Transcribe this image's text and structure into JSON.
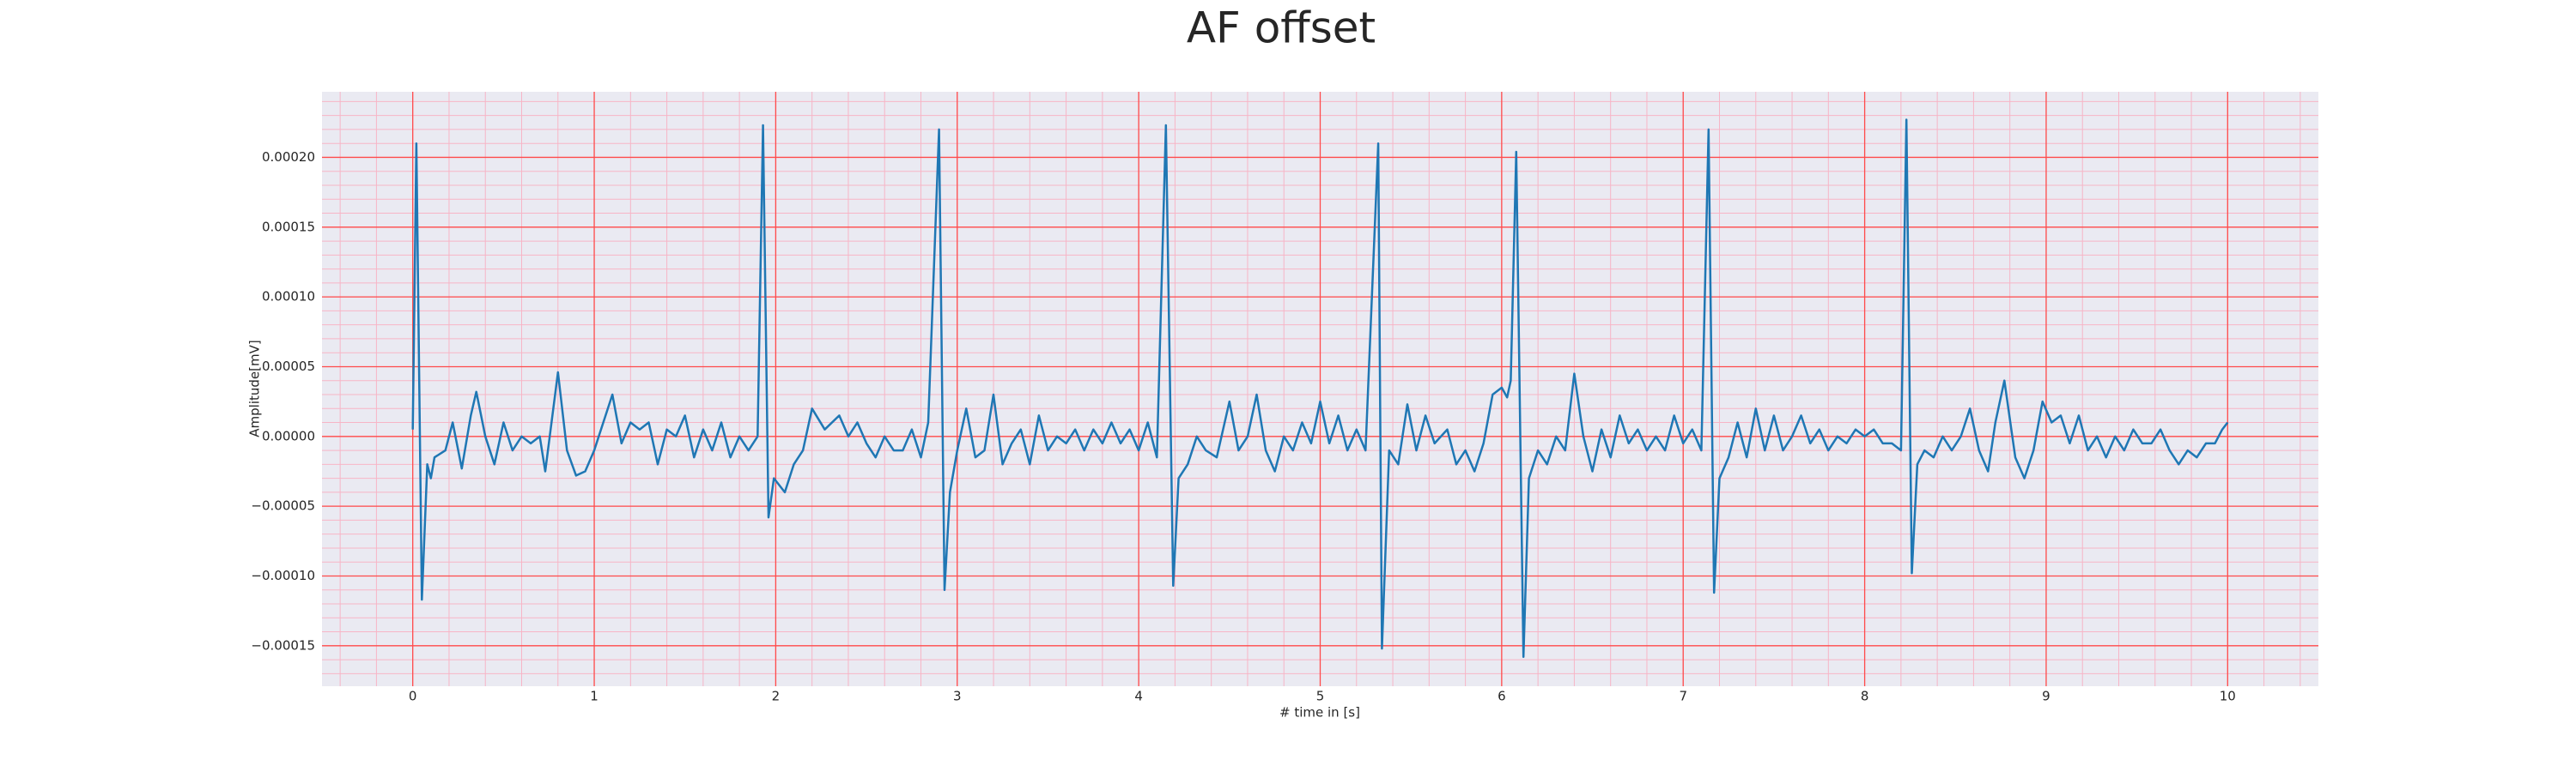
{
  "chart_data": {
    "type": "line",
    "title": "AF offset",
    "x_label": "# time in [s]",
    "y_label": "Amplitude[mV]",
    "xlim": [
      -0.5,
      10.5
    ],
    "ylim": [
      -0.000179,
      0.000247
    ],
    "xticks": [
      0,
      1,
      2,
      3,
      4,
      5,
      6,
      7,
      8,
      9,
      10
    ],
    "yticks": [
      {
        "value": -0.00015,
        "label": "−0.00015"
      },
      {
        "value": -0.0001,
        "label": "−0.00010"
      },
      {
        "value": -5e-05,
        "label": "−0.00005"
      },
      {
        "value": 0,
        "label": "0.00000"
      },
      {
        "value": 5e-05,
        "label": "0.00005"
      },
      {
        "value": 0.0001,
        "label": "0.00010"
      },
      {
        "value": 0.00015,
        "label": "0.00015"
      },
      {
        "value": 0.0002,
        "label": "0.00020"
      }
    ],
    "grid": true,
    "grid_color": "#ff4b4b",
    "minor_grid": {
      "x": 0.2,
      "y": 1e-05,
      "color": "#f7b5c6"
    },
    "background": "#eaeaf2",
    "series": [
      {
        "name": "AF offset",
        "color": "#1f77b4",
        "x": [
          0,
          0.02,
          0.05,
          0.08,
          0.1,
          0.12,
          0.18,
          0.22,
          0.27,
          0.32,
          0.35,
          0.4,
          0.45,
          0.5,
          0.55,
          0.6,
          0.65,
          0.7,
          0.73,
          0.8,
          0.85,
          0.9,
          0.95,
          1.0,
          1.05,
          1.1,
          1.15,
          1.2,
          1.25,
          1.3,
          1.35,
          1.4,
          1.45,
          1.5,
          1.55,
          1.6,
          1.65,
          1.7,
          1.75,
          1.8,
          1.85,
          1.9,
          1.93,
          1.96,
          1.99,
          2.05,
          2.1,
          2.15,
          2.2,
          2.27,
          2.35,
          2.4,
          2.45,
          2.5,
          2.55,
          2.6,
          2.65,
          2.7,
          2.75,
          2.8,
          2.84,
          2.9,
          2.93,
          2.96,
          3.0,
          3.05,
          3.1,
          3.15,
          3.2,
          3.25,
          3.3,
          3.35,
          3.4,
          3.45,
          3.5,
          3.55,
          3.6,
          3.65,
          3.7,
          3.75,
          3.8,
          3.85,
          3.9,
          3.95,
          4.0,
          4.05,
          4.1,
          4.15,
          4.19,
          4.22,
          4.27,
          4.32,
          4.37,
          4.43,
          4.5,
          4.55,
          4.6,
          4.65,
          4.7,
          4.75,
          4.8,
          4.85,
          4.9,
          4.95,
          5.0,
          5.05,
          5.1,
          5.15,
          5.2,
          5.25,
          5.32,
          5.34,
          5.38,
          5.43,
          5.48,
          5.53,
          5.58,
          5.63,
          5.7,
          5.75,
          5.8,
          5.85,
          5.9,
          5.95,
          6.0,
          6.03,
          6.05,
          6.08,
          6.12,
          6.15,
          6.2,
          6.25,
          6.3,
          6.35,
          6.4,
          6.45,
          6.5,
          6.55,
          6.6,
          6.65,
          6.7,
          6.75,
          6.8,
          6.85,
          6.9,
          6.95,
          7.0,
          7.05,
          7.1,
          7.14,
          7.17,
          7.2,
          7.25,
          7.3,
          7.35,
          7.4,
          7.45,
          7.5,
          7.55,
          7.6,
          7.65,
          7.7,
          7.75,
          7.8,
          7.85,
          7.9,
          7.95,
          8.0,
          8.05,
          8.1,
          8.15,
          8.2,
          8.23,
          8.26,
          8.29,
          8.33,
          8.38,
          8.43,
          8.48,
          8.53,
          8.58,
          8.63,
          8.68,
          8.72,
          8.77,
          8.83,
          8.88,
          8.93,
          8.98,
          9.03,
          9.08,
          9.13,
          9.18,
          9.23,
          9.28,
          9.33,
          9.38,
          9.43,
          9.48,
          9.53,
          9.58,
          9.63,
          9.68,
          9.73,
          9.78,
          9.83,
          9.88,
          9.93,
          9.97,
          10.0
        ],
        "values": [
          5e-06,
          0.00021,
          -0.000117,
          -2e-05,
          -3e-05,
          -1.5e-05,
          -1e-05,
          1e-05,
          -2.3e-05,
          1.5e-05,
          3.2e-05,
          0,
          -2e-05,
          1e-05,
          -1e-05,
          0,
          -5e-06,
          0,
          -2.5e-05,
          4.6e-05,
          -1e-05,
          -2.8e-05,
          -2.5e-05,
          -1e-05,
          1e-05,
          3e-05,
          -5e-06,
          1e-05,
          5e-06,
          1e-05,
          -2e-05,
          5e-06,
          0,
          1.5e-05,
          -1.5e-05,
          5e-06,
          -1e-05,
          1e-05,
          -1.5e-05,
          0,
          -1e-05,
          0,
          0.000223,
          -5.8e-05,
          -3e-05,
          -4e-05,
          -2e-05,
          -1e-05,
          2e-05,
          5e-06,
          1.5e-05,
          0,
          1e-05,
          -5e-06,
          -1.5e-05,
          0,
          -1e-05,
          -1e-05,
          5e-06,
          -1.5e-05,
          1e-05,
          0.00022,
          -0.00011,
          -4e-05,
          -1e-05,
          2e-05,
          -1.5e-05,
          -1e-05,
          3e-05,
          -2e-05,
          -5e-06,
          5e-06,
          -2e-05,
          1.5e-05,
          -1e-05,
          0,
          -5e-06,
          5e-06,
          -1e-05,
          5e-06,
          -5e-06,
          1e-05,
          -5e-06,
          5e-06,
          -1e-05,
          1e-05,
          -1.5e-05,
          0.000223,
          -0.000107,
          -3e-05,
          -2e-05,
          0,
          -1e-05,
          -1.5e-05,
          2.5e-05,
          -1e-05,
          0,
          3e-05,
          -1e-05,
          -2.5e-05,
          0,
          -1e-05,
          1e-05,
          -5e-06,
          2.5e-05,
          -5e-06,
          1.5e-05,
          -1e-05,
          5e-06,
          -1e-05,
          0.00021,
          -0.000152,
          -1e-05,
          -2e-05,
          2.3e-05,
          -1e-05,
          1.5e-05,
          -5e-06,
          5e-06,
          -2e-05,
          -1e-05,
          -2.5e-05,
          -5e-06,
          3e-05,
          3.5e-05,
          2.8e-05,
          4e-05,
          0.000204,
          -0.000158,
          -3e-05,
          -1e-05,
          -2e-05,
          0,
          -1e-05,
          4.5e-05,
          0,
          -2.5e-05,
          5e-06,
          -1.5e-05,
          1.5e-05,
          -5e-06,
          5e-06,
          -1e-05,
          0,
          -1e-05,
          1.5e-05,
          -5e-06,
          5e-06,
          -1e-05,
          0.00022,
          -0.000112,
          -3e-05,
          -1.5e-05,
          1e-05,
          -1.5e-05,
          2e-05,
          -1e-05,
          1.5e-05,
          -1e-05,
          0,
          1.5e-05,
          -5e-06,
          5e-06,
          -1e-05,
          0,
          -5e-06,
          5e-06,
          0,
          5e-06,
          -5e-06,
          -5e-06,
          -1e-05,
          0.000227,
          -9.8e-05,
          -2e-05,
          -1e-05,
          -1.5e-05,
          0,
          -1e-05,
          0,
          2e-05,
          -1e-05,
          -2.5e-05,
          1e-05,
          4e-05,
          -1.5e-05,
          -3e-05,
          -1e-05,
          2.5e-05,
          1e-05,
          1.5e-05,
          -5e-06,
          1.5e-05,
          -1e-05,
          0,
          -1.5e-05,
          0,
          -1e-05,
          5e-06,
          -5e-06,
          -5e-06,
          5e-06,
          -1e-05,
          -2e-05,
          -1e-05,
          -1.5e-05,
          -5e-06,
          -5e-06,
          5e-06,
          1e-05
        ]
      }
    ]
  }
}
